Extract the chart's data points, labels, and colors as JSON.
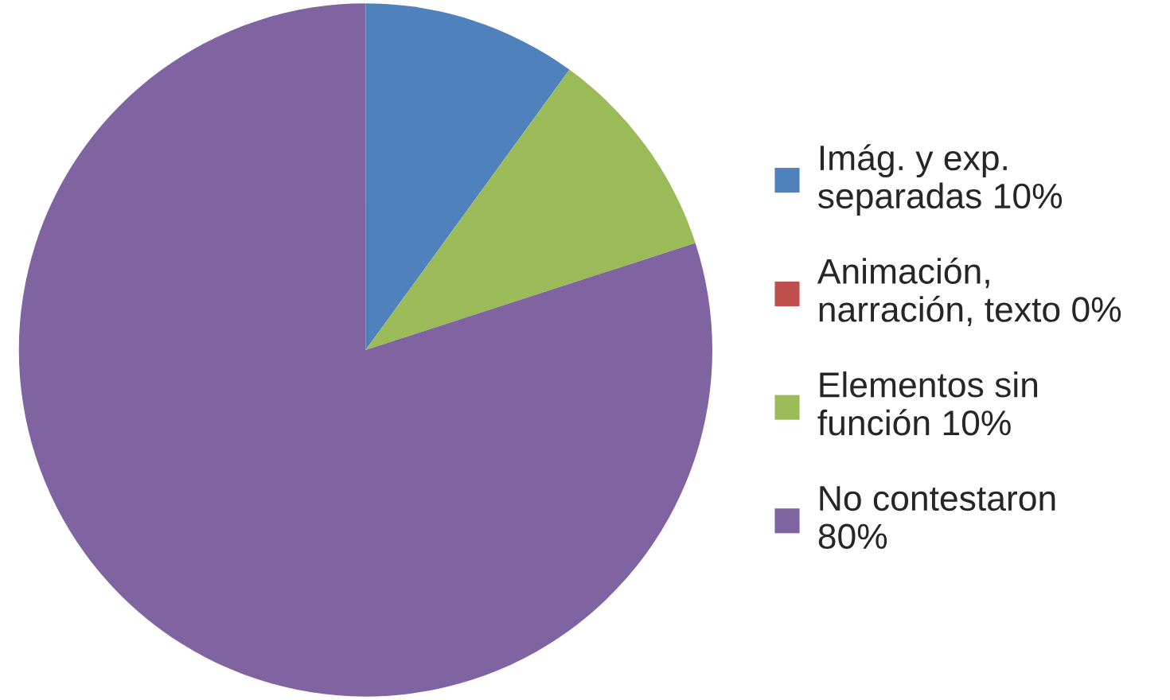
{
  "chart_data": {
    "type": "pie",
    "categories": [
      "Imág. y exp.\nseparadas 10%",
      "Animación,\nnarración, texto 0%",
      "Elementos sin\nfunción 10%",
      "No contestaron\n80%"
    ],
    "values": [
      10,
      0,
      10,
      80
    ],
    "colors": [
      "#4f81bd",
      "#c0504d",
      "#9bbb59",
      "#8064a2"
    ],
    "legend": "right"
  }
}
